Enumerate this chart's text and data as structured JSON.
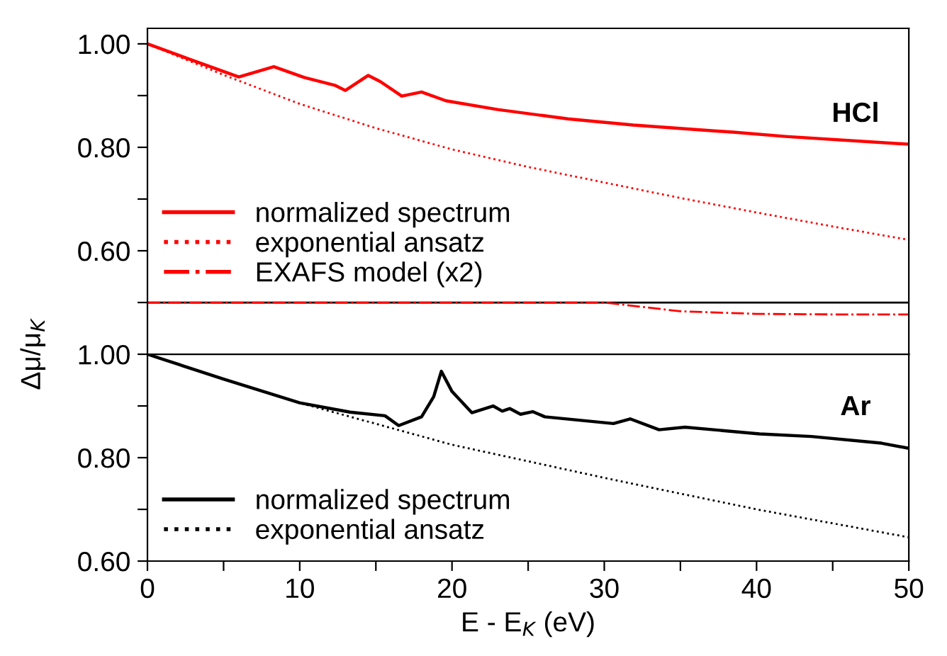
{
  "chart_data": [
    {
      "type": "line",
      "ylabel": "Δμ/μ$_{K}$",
      "xlim": [
        0,
        50
      ],
      "ylim": [
        0.4,
        1.03
      ],
      "tick_labels": "y",
      "legend": "bottom left",
      "grid": false,
      "yticks": [
        {
          "value": 0.5,
          "label": null
        },
        {
          "value": 0.6,
          "label": "0.60"
        },
        {
          "value": 0.7,
          "label": null
        },
        {
          "value": 0.8,
          "label": "0.80"
        },
        {
          "value": 0.9,
          "label": null
        },
        {
          "value": 1.0,
          "label": "1.00"
        }
      ],
      "annotations": [
        "HCl"
      ],
      "ref_lines": [
        {
          "axis": "y",
          "value": 0.5,
          "label": null,
          "color": "#000000",
          "line_style": "solid"
        }
      ],
      "series": [
        {
          "name": "normalized spectrum",
          "color": "#ff0000",
          "line_style": "solid",
          "x": [
            0,
            2.7,
            6.0,
            8.3,
            10.3,
            12.3,
            13.0,
            14.5,
            15.3,
            16.7,
            18.0,
            19.6,
            23.0,
            27.6,
            31.9,
            38.6,
            41.9,
            50
          ],
          "values": [
            1.0,
            0.971,
            0.936,
            0.956,
            0.935,
            0.92,
            0.91,
            0.939,
            0.927,
            0.899,
            0.907,
            0.89,
            0.873,
            0.855,
            0.843,
            0.829,
            0.821,
            0.806
          ]
        },
        {
          "name": "exponential ansatz",
          "color": "#ff0000",
          "line_style": "dotted",
          "x": [
            0,
            5,
            10,
            15,
            20,
            25,
            30,
            35,
            40,
            45,
            50
          ],
          "values": [
            1.0,
            0.94,
            0.884,
            0.837,
            0.796,
            0.762,
            0.732,
            0.702,
            0.674,
            0.647,
            0.621
          ]
        },
        {
          "name": "EXAFS model (x2)",
          "color": "#ff0000",
          "line_style": "dashdot",
          "x": [
            0,
            30,
            35,
            40,
            45,
            50
          ],
          "values": [
            0.5,
            0.5,
            0.483,
            0.478,
            0.477,
            0.477
          ]
        }
      ]
    },
    {
      "type": "line",
      "xlabel": "E - E$_{K}$ (eV)",
      "xlim": [
        0,
        50
      ],
      "ylim": [
        0.6,
        1.0
      ],
      "legend": "bottom left",
      "grid": false,
      "xticks": [
        0,
        {
          "value": 5,
          "label": null
        },
        10,
        {
          "value": 15,
          "label": null
        },
        20,
        {
          "value": 25,
          "label": null
        },
        30,
        {
          "value": 35,
          "label": null
        },
        40,
        {
          "value": 45,
          "label": null
        },
        50
      ],
      "yticks": [
        {
          "value": 0.6,
          "label": "0.60"
        },
        {
          "value": 0.7,
          "label": null
        },
        {
          "value": 0.8,
          "label": "0.80"
        },
        {
          "value": 0.9,
          "label": null
        },
        {
          "value": 1.0,
          "label": "1.00"
        }
      ],
      "annotations": [
        "Ar"
      ],
      "series": [
        {
          "name": "normalized spectrum",
          "color": "#000000",
          "line_style": "solid",
          "x": [
            0,
            5,
            10,
            13.3,
            15.6,
            16.5,
            18.0,
            18.8,
            19.3,
            20.0,
            21.3,
            22.7,
            23.3,
            23.8,
            24.5,
            25.3,
            26.1,
            30.6,
            31.7,
            33.6,
            35.3,
            40.2,
            43.6,
            48.2,
            50
          ],
          "values": [
            1.0,
            0.952,
            0.906,
            0.888,
            0.881,
            0.862,
            0.879,
            0.918,
            0.967,
            0.928,
            0.887,
            0.9,
            0.89,
            0.895,
            0.884,
            0.889,
            0.879,
            0.866,
            0.875,
            0.854,
            0.859,
            0.846,
            0.841,
            0.828,
            0.818
          ]
        },
        {
          "name": "exponential ansatz",
          "color": "#000000",
          "line_style": "dotted",
          "x": [
            0,
            5,
            10,
            20,
            30,
            40,
            50
          ],
          "values": [
            1.0,
            0.952,
            0.906,
            0.825,
            0.761,
            0.7,
            0.646
          ]
        }
      ]
    }
  ]
}
